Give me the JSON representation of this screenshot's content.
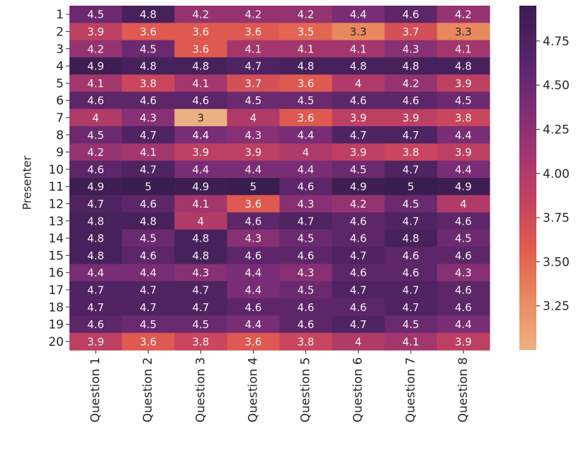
{
  "chart_data": {
    "type": "heatmap",
    "title": "",
    "xlabel": "",
    "ylabel": "Presenter",
    "x_categories": [
      "Question 1",
      "Question 2",
      "Question 3",
      "Question 4",
      "Question 5",
      "Question 6",
      "Question 7",
      "Question 8"
    ],
    "y_categories": [
      "1",
      "2",
      "3",
      "4",
      "5",
      "6",
      "7",
      "8",
      "9",
      "10",
      "11",
      "12",
      "13",
      "14",
      "15",
      "16",
      "17",
      "18",
      "19",
      "20"
    ],
    "values": [
      [
        4.5,
        4.8,
        4.2,
        4.2,
        4.2,
        4.4,
        4.6,
        4.2
      ],
      [
        3.9,
        3.6,
        3.6,
        3.6,
        3.5,
        3.3,
        3.7,
        3.3
      ],
      [
        4.2,
        4.5,
        3.6,
        4.1,
        4.1,
        4.1,
        4.3,
        4.1
      ],
      [
        4.9,
        4.8,
        4.8,
        4.7,
        4.8,
        4.8,
        4.8,
        4.8
      ],
      [
        4.1,
        3.8,
        4.1,
        3.7,
        3.6,
        4,
        4.2,
        3.9
      ],
      [
        4.6,
        4.6,
        4.6,
        4.5,
        4.5,
        4.6,
        4.6,
        4.5
      ],
      [
        4,
        4.3,
        3,
        4,
        3.6,
        3.9,
        3.9,
        3.8
      ],
      [
        4.5,
        4.7,
        4.4,
        4.3,
        4.4,
        4.7,
        4.7,
        4.4
      ],
      [
        4.2,
        4.1,
        3.9,
        3.9,
        4,
        3.9,
        3.8,
        3.9
      ],
      [
        4.6,
        4.7,
        4.4,
        4.4,
        4.4,
        4.5,
        4.7,
        4.4
      ],
      [
        4.9,
        5,
        4.9,
        5,
        4.6,
        4.9,
        5,
        4.9
      ],
      [
        4.7,
        4.6,
        4.1,
        3.6,
        4.3,
        4.2,
        4.5,
        4
      ],
      [
        4.8,
        4.8,
        4,
        4.6,
        4.7,
        4.6,
        4.7,
        4.6
      ],
      [
        4.8,
        4.5,
        4.8,
        4.3,
        4.5,
        4.6,
        4.8,
        4.5
      ],
      [
        4.8,
        4.6,
        4.8,
        4.6,
        4.6,
        4.7,
        4.6,
        4.6
      ],
      [
        4.4,
        4.4,
        4.3,
        4.4,
        4.3,
        4.6,
        4.6,
        4.3
      ],
      [
        4.7,
        4.7,
        4.7,
        4.4,
        4.5,
        4.7,
        4.7,
        4.6
      ],
      [
        4.7,
        4.7,
        4.7,
        4.6,
        4.6,
        4.6,
        4.7,
        4.6
      ],
      [
        4.6,
        4.5,
        4.5,
        4.4,
        4.6,
        4.7,
        4.5,
        4.4
      ],
      [
        3.9,
        3.6,
        3.8,
        3.6,
        3.8,
        4,
        4.1,
        3.9
      ]
    ],
    "colorbar": {
      "min": 3.0,
      "max": 4.95,
      "ticks": [
        3.25,
        3.5,
        3.75,
        4.0,
        4.25,
        4.5,
        4.75
      ],
      "tick_labels": [
        "3.25",
        "3.50",
        "3.75",
        "4.00",
        "4.25",
        "4.50",
        "4.75"
      ],
      "colormap": "flare",
      "color_stops": [
        "#edb081",
        "#ea8a5f",
        "#e35d4d",
        "#c54360",
        "#a1366e",
        "#7a2d75",
        "#532465",
        "#3a1d4f"
      ]
    },
    "legend": "right",
    "grid": false
  }
}
